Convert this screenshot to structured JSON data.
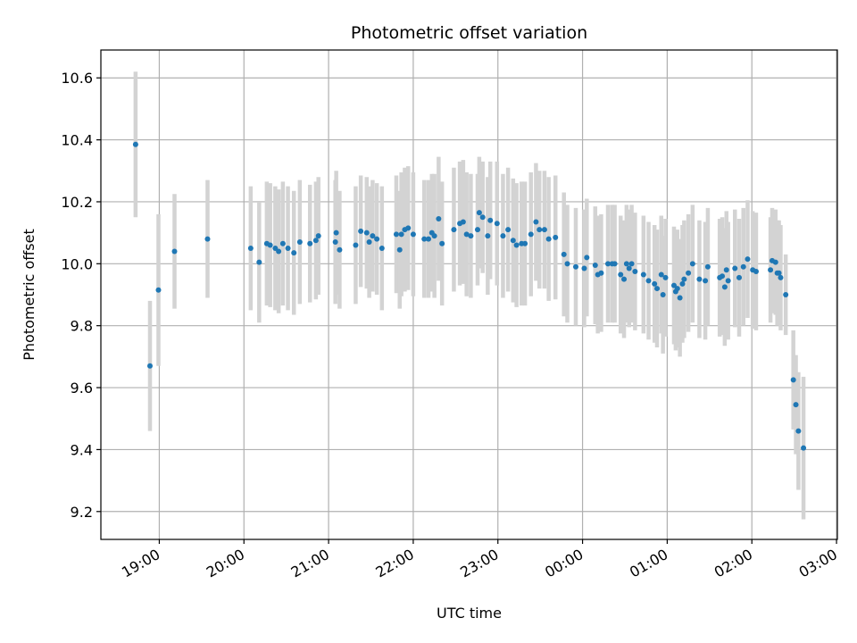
{
  "chart_data": {
    "type": "scatter",
    "title": "Photometric offset variation",
    "xlabel": "UTC time",
    "ylabel": "Photometric offset",
    "ylim": [
      9.11,
      10.69
    ],
    "xlim_hours": [
      18.31,
      27.01
    ],
    "grid": true,
    "point_color": "#1f77b4",
    "errorbar_color": "#d3d3d3",
    "yticks": [
      9.2,
      9.4,
      9.6,
      9.8,
      10.0,
      10.2,
      10.4,
      10.6
    ],
    "ytick_labels": [
      "9.2",
      "9.4",
      "9.6",
      "9.8",
      "10.0",
      "10.2",
      "10.4",
      "10.6"
    ],
    "xticks_hours": [
      19,
      20,
      21,
      22,
      23,
      24,
      25,
      26,
      27
    ],
    "xtick_labels": [
      "19:00",
      "20:00",
      "21:00",
      "22:00",
      "23:00",
      "00:00",
      "01:00",
      "02:00",
      "03:00"
    ],
    "points": [
      [
        18.72,
        10.385,
        0.235
      ],
      [
        18.89,
        9.67,
        0.21
      ],
      [
        18.99,
        9.915,
        0.245
      ],
      [
        19.18,
        10.04,
        0.185
      ],
      [
        19.57,
        10.08,
        0.19
      ],
      [
        20.08,
        10.05,
        0.2
      ],
      [
        20.18,
        10.005,
        0.195
      ],
      [
        20.27,
        10.065,
        0.2
      ],
      [
        20.31,
        10.06,
        0.2
      ],
      [
        20.37,
        10.05,
        0.2
      ],
      [
        20.41,
        10.04,
        0.2
      ],
      [
        20.46,
        10.065,
        0.2
      ],
      [
        20.52,
        10.05,
        0.2
      ],
      [
        20.59,
        10.035,
        0.2
      ],
      [
        20.66,
        10.07,
        0.2
      ],
      [
        20.78,
        10.065,
        0.19
      ],
      [
        20.85,
        10.075,
        0.19
      ],
      [
        20.88,
        10.09,
        0.19
      ],
      [
        21.08,
        10.07,
        0.2
      ],
      [
        21.09,
        10.1,
        0.2
      ],
      [
        21.13,
        10.045,
        0.19
      ],
      [
        21.32,
        10.06,
        0.19
      ],
      [
        21.38,
        10.105,
        0.18
      ],
      [
        21.45,
        10.1,
        0.18
      ],
      [
        21.48,
        10.07,
        0.18
      ],
      [
        21.52,
        10.09,
        0.18
      ],
      [
        21.57,
        10.08,
        0.18
      ],
      [
        21.63,
        10.05,
        0.2
      ],
      [
        21.8,
        10.095,
        0.19
      ],
      [
        21.84,
        10.045,
        0.19
      ],
      [
        21.86,
        10.095,
        0.2
      ],
      [
        21.9,
        10.11,
        0.2
      ],
      [
        21.94,
        10.115,
        0.2
      ],
      [
        22.0,
        10.095,
        0.2
      ],
      [
        22.13,
        10.08,
        0.19
      ],
      [
        22.18,
        10.08,
        0.19
      ],
      [
        22.22,
        10.1,
        0.19
      ],
      [
        22.25,
        10.09,
        0.2
      ],
      [
        22.3,
        10.145,
        0.2
      ],
      [
        22.34,
        10.065,
        0.2
      ],
      [
        22.48,
        10.11,
        0.2
      ],
      [
        22.55,
        10.13,
        0.2
      ],
      [
        22.59,
        10.135,
        0.2
      ],
      [
        22.63,
        10.095,
        0.2
      ],
      [
        22.68,
        10.09,
        0.2
      ],
      [
        22.76,
        10.11,
        0.18
      ],
      [
        22.78,
        10.165,
        0.18
      ],
      [
        22.82,
        10.15,
        0.18
      ],
      [
        22.88,
        10.09,
        0.19
      ],
      [
        22.91,
        10.14,
        0.19
      ],
      [
        22.99,
        10.13,
        0.2
      ],
      [
        23.06,
        10.09,
        0.2
      ],
      [
        23.12,
        10.11,
        0.2
      ],
      [
        23.18,
        10.075,
        0.2
      ],
      [
        23.22,
        10.06,
        0.2
      ],
      [
        23.28,
        10.065,
        0.2
      ],
      [
        23.32,
        10.065,
        0.2
      ],
      [
        23.39,
        10.095,
        0.2
      ],
      [
        23.45,
        10.135,
        0.19
      ],
      [
        23.49,
        10.11,
        0.19
      ],
      [
        23.55,
        10.11,
        0.19
      ],
      [
        23.6,
        10.08,
        0.2
      ],
      [
        23.68,
        10.085,
        0.2
      ],
      [
        23.78,
        10.03,
        0.2
      ],
      [
        23.82,
        10.0,
        0.19
      ],
      [
        23.92,
        9.99,
        0.19
      ],
      [
        24.02,
        9.985,
        0.19
      ],
      [
        24.05,
        10.02,
        0.19
      ],
      [
        24.15,
        9.995,
        0.19
      ],
      [
        24.18,
        9.965,
        0.19
      ],
      [
        24.22,
        9.97,
        0.19
      ],
      [
        24.3,
        10.0,
        0.19
      ],
      [
        24.35,
        10.0,
        0.19
      ],
      [
        24.38,
        10.0,
        0.19
      ],
      [
        24.45,
        9.965,
        0.19
      ],
      [
        24.49,
        9.95,
        0.19
      ],
      [
        24.52,
        10.0,
        0.19
      ],
      [
        24.55,
        9.985,
        0.19
      ],
      [
        24.58,
        10.0,
        0.19
      ],
      [
        24.62,
        9.975,
        0.19
      ],
      [
        24.72,
        9.965,
        0.19
      ],
      [
        24.78,
        9.945,
        0.19
      ],
      [
        24.85,
        9.935,
        0.19
      ],
      [
        24.88,
        9.92,
        0.19
      ],
      [
        24.93,
        9.965,
        0.19
      ],
      [
        24.95,
        9.9,
        0.19
      ],
      [
        24.98,
        9.955,
        0.19
      ],
      [
        25.08,
        9.93,
        0.19
      ],
      [
        25.1,
        9.91,
        0.19
      ],
      [
        25.12,
        9.92,
        0.19
      ],
      [
        25.15,
        9.89,
        0.19
      ],
      [
        25.18,
        9.935,
        0.19
      ],
      [
        25.2,
        9.95,
        0.19
      ],
      [
        25.25,
        9.97,
        0.19
      ],
      [
        25.3,
        10.0,
        0.19
      ],
      [
        25.38,
        9.95,
        0.19
      ],
      [
        25.45,
        9.945,
        0.19
      ],
      [
        25.48,
        9.99,
        0.19
      ],
      [
        25.62,
        9.955,
        0.19
      ],
      [
        25.65,
        9.96,
        0.19
      ],
      [
        25.68,
        9.925,
        0.19
      ],
      [
        25.7,
        9.98,
        0.19
      ],
      [
        25.72,
        9.945,
        0.19
      ],
      [
        25.8,
        9.985,
        0.19
      ],
      [
        25.85,
        9.955,
        0.19
      ],
      [
        25.9,
        9.99,
        0.19
      ],
      [
        25.95,
        10.015,
        0.19
      ],
      [
        26.01,
        9.98,
        0.19
      ],
      [
        26.05,
        9.975,
        0.19
      ],
      [
        26.22,
        9.98,
        0.17
      ],
      [
        26.24,
        10.01,
        0.17
      ],
      [
        26.28,
        10.005,
        0.17
      ],
      [
        26.3,
        9.97,
        0.17
      ],
      [
        26.32,
        9.97,
        0.17
      ],
      [
        26.34,
        9.955,
        0.17
      ],
      [
        26.4,
        9.9,
        0.13
      ],
      [
        26.49,
        9.625,
        0.16
      ],
      [
        26.52,
        9.545,
        0.16
      ],
      [
        26.55,
        9.46,
        0.19
      ],
      [
        26.61,
        9.405,
        0.23
      ]
    ]
  }
}
